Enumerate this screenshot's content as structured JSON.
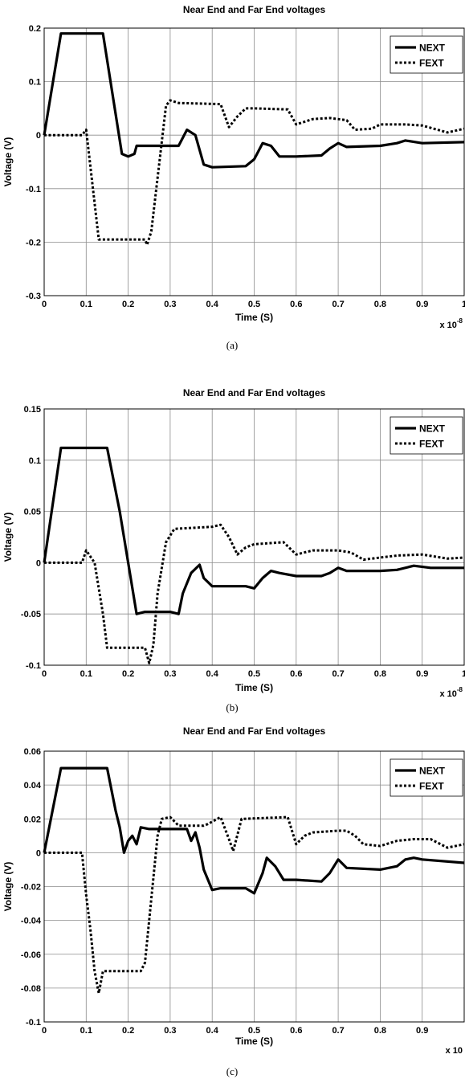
{
  "chart_data": [
    {
      "type": "line",
      "panel_caption": "(a)",
      "title": "Near End and Far End voltages",
      "xlabel": "Time (S)",
      "ylabel": "Voltage (V)",
      "x_multiplier": "x 10-8",
      "x_multiplier_base": "x 10",
      "x_multiplier_exp": "-8",
      "xlim": [
        0,
        1
      ],
      "ylim": [
        -0.3,
        0.2
      ],
      "xticks": [
        "0",
        "0.1",
        "0.2",
        "0.3",
        "0.4",
        "0.5",
        "0.6",
        "0.7",
        "0.8",
        "0.9",
        "1"
      ],
      "yticks": [
        "0.2",
        "0.1",
        "0",
        "-0.1",
        "-0.2",
        "-0.3"
      ],
      "grid": true,
      "legend_position": "top-right",
      "series": [
        {
          "name": "NEXT",
          "style": "solid",
          "x": [
            0,
            0.04,
            0.14,
            0.185,
            0.2,
            0.215,
            0.22,
            0.25,
            0.32,
            0.34,
            0.36,
            0.38,
            0.4,
            0.48,
            0.5,
            0.52,
            0.54,
            0.56,
            0.6,
            0.66,
            0.68,
            0.7,
            0.72,
            0.8,
            0.84,
            0.86,
            0.9,
            1.0
          ],
          "y": [
            0,
            0.19,
            0.19,
            -0.035,
            -0.04,
            -0.035,
            -0.02,
            -0.02,
            -0.02,
            0.01,
            0.0,
            -0.055,
            -0.06,
            -0.058,
            -0.045,
            -0.015,
            -0.02,
            -0.04,
            -0.04,
            -0.038,
            -0.025,
            -0.015,
            -0.022,
            -0.02,
            -0.015,
            -0.01,
            -0.015,
            -0.013
          ]
        },
        {
          "name": "FEXT",
          "style": "dotted",
          "x": [
            0,
            0.09,
            0.1,
            0.13,
            0.24,
            0.245,
            0.255,
            0.29,
            0.3,
            0.32,
            0.42,
            0.44,
            0.46,
            0.48,
            0.5,
            0.58,
            0.6,
            0.62,
            0.64,
            0.68,
            0.72,
            0.74,
            0.78,
            0.8,
            0.82,
            0.86,
            0.9,
            0.96,
            1.0
          ],
          "y": [
            0,
            0,
            0.01,
            -0.195,
            -0.195,
            -0.205,
            -0.18,
            0.055,
            0.065,
            0.06,
            0.058,
            0.015,
            0.035,
            0.05,
            0.05,
            0.048,
            0.02,
            0.025,
            0.03,
            0.032,
            0.028,
            0.01,
            0.012,
            0.02,
            0.02,
            0.02,
            0.018,
            0.005,
            0.012
          ]
        }
      ]
    },
    {
      "type": "line",
      "panel_caption": "(b)",
      "title": "Near End and Far End voltages",
      "xlabel": "Time (S)",
      "ylabel": "Voltage (V)",
      "x_multiplier": "x 10-8",
      "x_multiplier_base": "x 10",
      "x_multiplier_exp": "-8",
      "xlim": [
        0,
        1
      ],
      "ylim": [
        -0.1,
        0.15
      ],
      "xticks": [
        "0",
        "0.1",
        "0.2",
        "0.3",
        "0.4",
        "0.5",
        "0.6",
        "0.7",
        "0.8",
        "0.9",
        "1"
      ],
      "yticks": [
        "0.15",
        "0.1",
        "0.05",
        "0",
        "-0.05",
        "-0.1"
      ],
      "grid": true,
      "legend_position": "top-right",
      "series": [
        {
          "name": "NEXT",
          "style": "solid",
          "x": [
            0,
            0.04,
            0.15,
            0.18,
            0.2,
            0.22,
            0.24,
            0.26,
            0.3,
            0.32,
            0.33,
            0.35,
            0.37,
            0.38,
            0.4,
            0.48,
            0.5,
            0.52,
            0.54,
            0.56,
            0.6,
            0.66,
            0.68,
            0.7,
            0.72,
            0.8,
            0.84,
            0.88,
            0.92,
            1.0
          ],
          "y": [
            0,
            0.112,
            0.112,
            0.05,
            0.0,
            -0.05,
            -0.048,
            -0.048,
            -0.048,
            -0.05,
            -0.03,
            -0.01,
            -0.002,
            -0.015,
            -0.023,
            -0.023,
            -0.025,
            -0.015,
            -0.008,
            -0.01,
            -0.013,
            -0.013,
            -0.01,
            -0.005,
            -0.008,
            -0.008,
            -0.007,
            -0.003,
            -0.005,
            -0.005
          ]
        },
        {
          "name": "FEXT",
          "style": "dotted",
          "x": [
            0,
            0.09,
            0.1,
            0.12,
            0.14,
            0.15,
            0.24,
            0.25,
            0.26,
            0.27,
            0.29,
            0.31,
            0.4,
            0.42,
            0.44,
            0.46,
            0.48,
            0.5,
            0.57,
            0.6,
            0.62,
            0.64,
            0.7,
            0.73,
            0.76,
            0.8,
            0.84,
            0.9,
            0.96,
            1.0
          ],
          "y": [
            0,
            0,
            0.012,
            0.0,
            -0.05,
            -0.083,
            -0.083,
            -0.098,
            -0.08,
            -0.03,
            0.02,
            0.033,
            0.035,
            0.037,
            0.025,
            0.008,
            0.015,
            0.018,
            0.02,
            0.008,
            0.01,
            0.012,
            0.012,
            0.01,
            0.003,
            0.005,
            0.007,
            0.008,
            0.004,
            0.005
          ]
        }
      ]
    },
    {
      "type": "line",
      "panel_caption": "(c)",
      "title": "Near End and Far End voltages",
      "xlabel": "Time (S)",
      "ylabel": "Voltage (V)",
      "x_multiplier": "x 10",
      "x_multiplier_base": "x 10",
      "x_multiplier_exp": "",
      "xlim": [
        0,
        1
      ],
      "ylim": [
        -0.1,
        0.06
      ],
      "xticks": [
        "0",
        "0.1",
        "0.2",
        "0.3",
        "0.4",
        "0.5",
        "0.6",
        "0.7",
        "0.8",
        "0.9"
      ],
      "yticks": [
        "0.06",
        "0.04",
        "0.02",
        "0",
        "-0.02",
        "-0.04",
        "-0.06",
        "-0.08",
        "-0.1"
      ],
      "grid": true,
      "legend_position": "top-right",
      "series": [
        {
          "name": "NEXT",
          "style": "solid",
          "x": [
            0,
            0.04,
            0.15,
            0.17,
            0.18,
            0.19,
            0.2,
            0.21,
            0.22,
            0.23,
            0.25,
            0.3,
            0.34,
            0.35,
            0.36,
            0.37,
            0.38,
            0.4,
            0.42,
            0.48,
            0.5,
            0.52,
            0.53,
            0.55,
            0.57,
            0.6,
            0.66,
            0.68,
            0.7,
            0.72,
            0.8,
            0.84,
            0.86,
            0.88,
            0.9,
            1.0
          ],
          "y": [
            0,
            0.05,
            0.05,
            0.025,
            0.015,
            0.0,
            0.007,
            0.01,
            0.005,
            0.015,
            0.014,
            0.014,
            0.014,
            0.007,
            0.012,
            0.003,
            -0.01,
            -0.022,
            -0.021,
            -0.021,
            -0.024,
            -0.012,
            -0.003,
            -0.008,
            -0.016,
            -0.016,
            -0.017,
            -0.012,
            -0.004,
            -0.009,
            -0.01,
            -0.008,
            -0.004,
            -0.003,
            -0.004,
            -0.006
          ]
        },
        {
          "name": "FEXT",
          "style": "dotted",
          "x": [
            0,
            0.09,
            0.1,
            0.11,
            0.12,
            0.13,
            0.14,
            0.23,
            0.24,
            0.27,
            0.28,
            0.3,
            0.32,
            0.38,
            0.39,
            0.42,
            0.44,
            0.45,
            0.47,
            0.58,
            0.6,
            0.62,
            0.64,
            0.7,
            0.72,
            0.74,
            0.76,
            0.8,
            0.84,
            0.88,
            0.92,
            0.96,
            1.0
          ],
          "y": [
            0,
            0,
            -0.025,
            -0.045,
            -0.07,
            -0.083,
            -0.07,
            -0.07,
            -0.065,
            0.01,
            0.02,
            0.021,
            0.016,
            0.016,
            0.017,
            0.021,
            0.008,
            0.001,
            0.02,
            0.021,
            0.005,
            0.01,
            0.012,
            0.013,
            0.013,
            0.01,
            0.005,
            0.004,
            0.007,
            0.008,
            0.008,
            0.003,
            0.005
          ]
        }
      ]
    }
  ]
}
